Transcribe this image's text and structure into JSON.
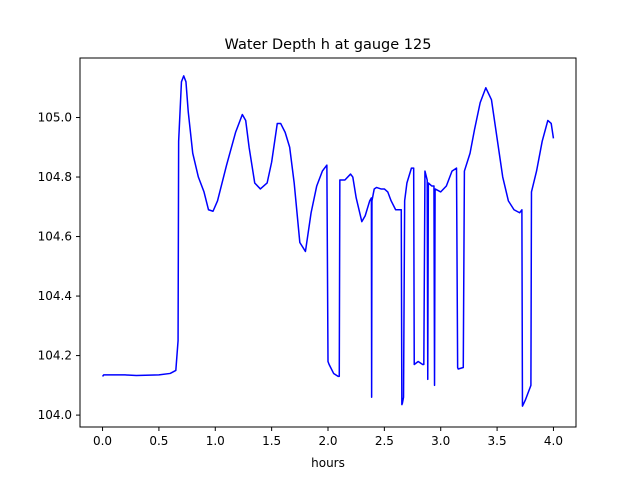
{
  "chart_data": {
    "type": "line",
    "title": "Water Depth h at gauge 125",
    "xlabel": "hours",
    "ylabel": "",
    "xlim": [
      -0.2,
      4.2
    ],
    "ylim": [
      103.96,
      105.2
    ],
    "xticks": [
      0.0,
      0.5,
      1.0,
      1.5,
      2.0,
      2.5,
      3.0,
      3.5,
      4.0
    ],
    "xtick_labels": [
      "0.0",
      "0.5",
      "1.0",
      "1.5",
      "2.0",
      "2.5",
      "3.0",
      "3.5",
      "4.0"
    ],
    "yticks": [
      104.0,
      104.2,
      104.4,
      104.6,
      104.8,
      105.0
    ],
    "ytick_labels": [
      "104.0",
      "104.2",
      "104.4",
      "104.6",
      "104.8",
      "105.0"
    ],
    "grid": false,
    "legend": "none",
    "series": [
      {
        "color": "#0000ff",
        "x": [
          0.0,
          0.01,
          0.2,
          0.3,
          0.5,
          0.6,
          0.65,
          0.67,
          0.675,
          0.7,
          0.72,
          0.74,
          0.76,
          0.8,
          0.85,
          0.9,
          0.94,
          0.98,
          1.02,
          1.1,
          1.18,
          1.24,
          1.27,
          1.3,
          1.35,
          1.4,
          1.46,
          1.5,
          1.55,
          1.58,
          1.62,
          1.66,
          1.7,
          1.75,
          1.8,
          1.85,
          1.9,
          1.95,
          1.99,
          2.0,
          2.01,
          2.05,
          2.09,
          2.1,
          2.105,
          2.15,
          2.2,
          2.22,
          2.25,
          2.3,
          2.33,
          2.37,
          2.385,
          2.387,
          2.39,
          2.41,
          2.43,
          2.47,
          2.5,
          2.53,
          2.56,
          2.6,
          2.65,
          2.655,
          2.66,
          2.67,
          2.68,
          2.7,
          2.74,
          2.76,
          2.765,
          2.8,
          2.84,
          2.85,
          2.86,
          2.88,
          2.885,
          2.89,
          2.92,
          2.94,
          2.945,
          2.95,
          3.0,
          3.05,
          3.1,
          3.14,
          3.15,
          3.155,
          3.2,
          3.21,
          3.26,
          3.3,
          3.35,
          3.4,
          3.45,
          3.5,
          3.55,
          3.6,
          3.65,
          3.7,
          3.72,
          3.725,
          3.75,
          3.8,
          3.805,
          3.85,
          3.9,
          3.95,
          3.98,
          4.0
        ],
        "y": [
          104.13,
          104.135,
          104.135,
          104.133,
          104.135,
          104.14,
          104.15,
          104.25,
          104.92,
          105.12,
          105.14,
          105.12,
          105.02,
          104.88,
          104.8,
          104.75,
          104.69,
          104.685,
          104.72,
          104.84,
          104.95,
          105.01,
          104.99,
          104.9,
          104.78,
          104.76,
          104.78,
          104.85,
          104.98,
          104.98,
          104.95,
          104.9,
          104.78,
          104.58,
          104.55,
          104.68,
          104.77,
          104.82,
          104.84,
          104.18,
          104.17,
          104.14,
          104.13,
          104.13,
          104.79,
          104.79,
          104.81,
          104.8,
          104.73,
          104.65,
          104.67,
          104.72,
          104.73,
          104.06,
          104.72,
          104.76,
          104.765,
          104.76,
          104.76,
          104.75,
          104.72,
          104.69,
          104.69,
          104.035,
          104.04,
          104.06,
          104.72,
          104.78,
          104.83,
          104.83,
          104.17,
          104.18,
          104.17,
          104.17,
          104.82,
          104.79,
          104.12,
          104.78,
          104.77,
          104.77,
          104.1,
          104.76,
          104.75,
          104.77,
          104.82,
          104.83,
          104.16,
          104.155,
          104.16,
          104.82,
          104.88,
          104.96,
          105.05,
          105.1,
          105.06,
          104.93,
          104.8,
          104.72,
          104.69,
          104.68,
          104.69,
          104.03,
          104.05,
          104.1,
          104.75,
          104.82,
          104.92,
          104.99,
          104.98,
          104.93
        ]
      }
    ]
  }
}
